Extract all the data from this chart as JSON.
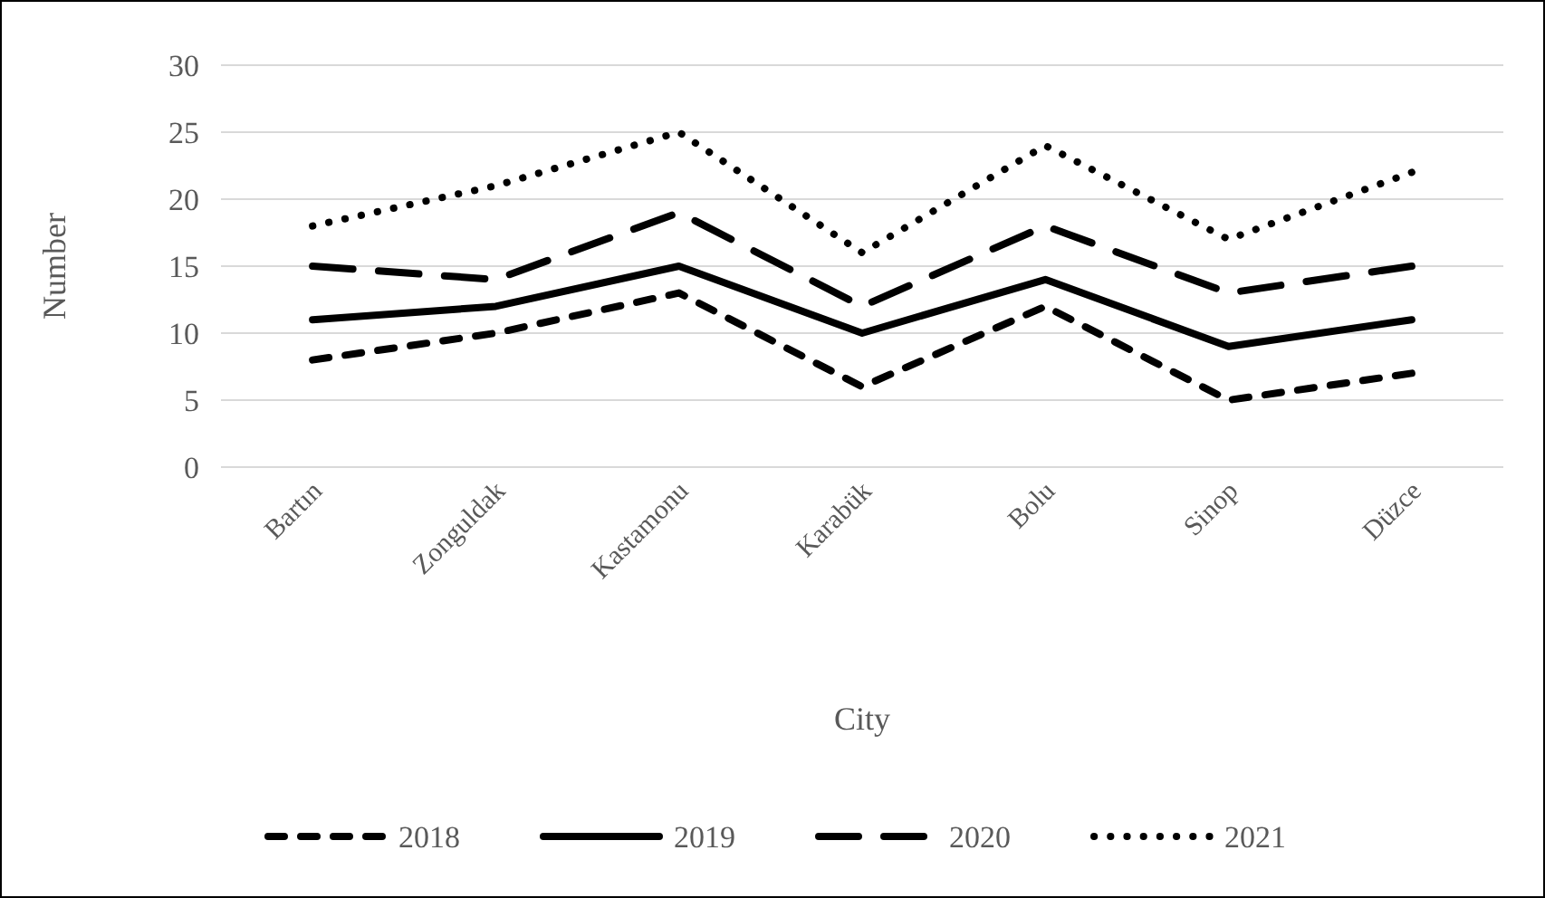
{
  "chart_data": {
    "type": "line",
    "xlabel": "City",
    "ylabel": "Number",
    "categories": [
      "Bartın",
      "Zonguldak",
      "Kastamonu",
      "Karabük",
      "Bolu",
      "Sinop",
      "Düzce"
    ],
    "series": [
      {
        "name": "2018",
        "color": "#000000",
        "line_style": "dashed",
        "values": [
          8,
          10,
          13,
          6,
          12,
          5,
          7
        ]
      },
      {
        "name": "2019",
        "color": "#000000",
        "line_style": "solid",
        "values": [
          11,
          12,
          15,
          10,
          14,
          9,
          11
        ]
      },
      {
        "name": "2020",
        "color": "#000000",
        "line_style": "dashed",
        "values": [
          15,
          14,
          19,
          12,
          18,
          13,
          15
        ]
      },
      {
        "name": "2021",
        "color": "#000000",
        "line_style": "dotted",
        "values": [
          18,
          21,
          25,
          16,
          24,
          17,
          22
        ]
      }
    ],
    "ylim": [
      0,
      30
    ],
    "yticks": [
      0,
      5,
      10,
      15,
      20,
      25,
      30
    ],
    "grid": "y",
    "legend": "bottom",
    "marker": "none"
  }
}
